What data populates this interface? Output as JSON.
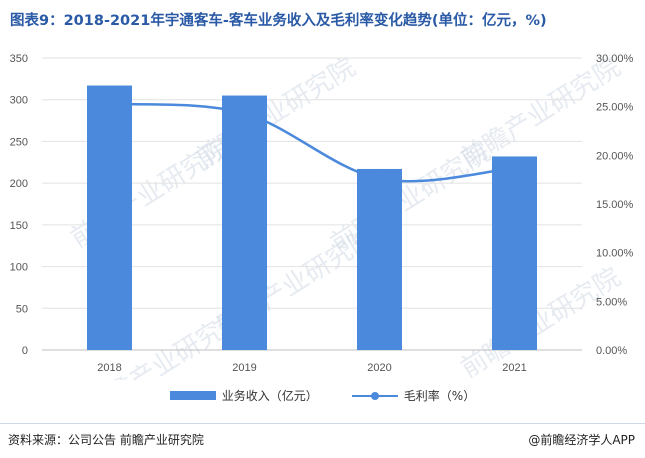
{
  "header": {
    "title": "图表9：2018-2021年宇通客车-客车业务收入及毛利率变化趋势(单位：亿元，%)"
  },
  "colors": {
    "title": "#2a5aa6",
    "bar": "#4a89dc",
    "line": "#4a89dc"
  },
  "chart_data": {
    "type": "bar",
    "categories": [
      "2018",
      "2019",
      "2020",
      "2021"
    ],
    "series": [
      {
        "name": "业务收入（亿元）",
        "type": "bar",
        "axis": "left",
        "values": [
          317,
          305,
          217,
          232
        ]
      },
      {
        "name": "毛利率（%）",
        "type": "line",
        "axis": "right",
        "smooth": true,
        "values": [
          25.3,
          24.3,
          17.6,
          18.7
        ]
      }
    ],
    "y_left": {
      "min": 0,
      "max": 350,
      "ticks": [
        "0",
        "50",
        "100",
        "150",
        "200",
        "250",
        "300",
        "350"
      ]
    },
    "y_right": {
      "min": 0,
      "max": 30,
      "ticks": [
        "0.00%",
        "5.00%",
        "10.00%",
        "15.00%",
        "20.00%",
        "25.00%",
        "30.00%"
      ]
    },
    "grid": true,
    "legend": "bottom-center"
  },
  "legend": {
    "bar_label": "业务收入（亿元）",
    "line_label": "毛利率（%）"
  },
  "footer": {
    "source": "资料来源：公司公告  前瞻产业研究院",
    "brand": "@前瞻经济学人APP"
  },
  "watermark": {
    "text": "前瞻产业研究院"
  }
}
